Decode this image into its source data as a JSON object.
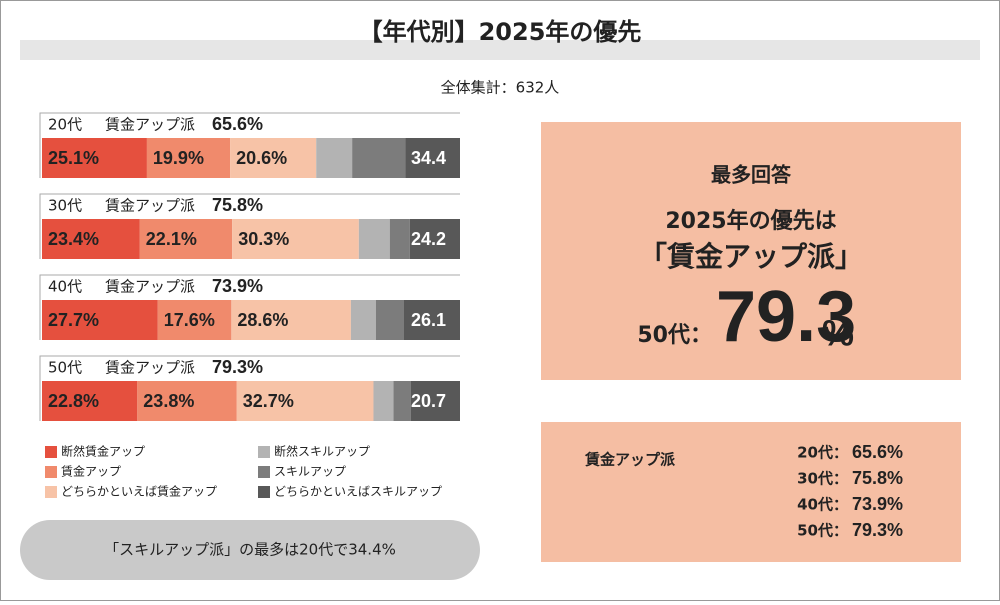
{
  "chart_data": {
    "type": "stacked_bar",
    "title": "【年代別】2025年の優先",
    "subtitle": "全体集計：632人",
    "categories": [
      "20代",
      "30代",
      "40代",
      "50代"
    ],
    "group_label": "賃金アップ派",
    "xlim": [
      0,
      100
    ],
    "series": [
      {
        "name": "断然賃金アップ",
        "color": "#e5503e",
        "values": [
          25.1,
          23.4,
          27.7,
          22.8
        ],
        "value_labels": [
          "25.1%",
          "23.4%",
          "27.7%",
          "22.8%"
        ]
      },
      {
        "name": "賃金アップ",
        "color": "#f08a6c",
        "values": [
          19.9,
          22.1,
          17.6,
          23.8
        ],
        "value_labels": [
          "19.9%",
          "22.1%",
          "17.6%",
          "23.8%"
        ]
      },
      {
        "name": "どちらかといえば賃金アップ",
        "color": "#f7c3a7",
        "values": [
          20.6,
          30.3,
          28.6,
          32.7
        ],
        "value_labels": [
          "20.6%",
          "30.3%",
          "28.6%",
          "32.7%"
        ]
      },
      {
        "name": "断然スキルアップ",
        "color": "#b3b3b3",
        "values": [
          8.6,
          7.4,
          6.0,
          4.8
        ]
      },
      {
        "name": "スキルアップ",
        "color": "#7c7c7c",
        "values": [
          12.7,
          4.8,
          6.7,
          4.1
        ]
      },
      {
        "name": "どちらかといえばスキルアップ",
        "color": "#585858",
        "values": [
          13.1,
          12.0,
          13.4,
          11.8
        ]
      }
    ],
    "wage_totals": [
      65.6,
      75.8,
      73.9,
      79.3
    ],
    "wage_total_labels": [
      "65.6%",
      "75.8%",
      "73.9%",
      "79.3%"
    ],
    "skill_totals": [
      34.4,
      24.2,
      26.1,
      20.7
    ],
    "note": "「スキルアップ派」の最多は20代で34.4%"
  },
  "highlight": {
    "heading": "最多回答",
    "line1": "2025年の優先は",
    "line2": "「賃金アップ派」",
    "group": "50代：",
    "value": 79.3,
    "unit": "%"
  },
  "summary": {
    "title": "賃金アップ派",
    "items": [
      "20代：",
      "30代：",
      "40代：",
      "50代："
    ]
  }
}
